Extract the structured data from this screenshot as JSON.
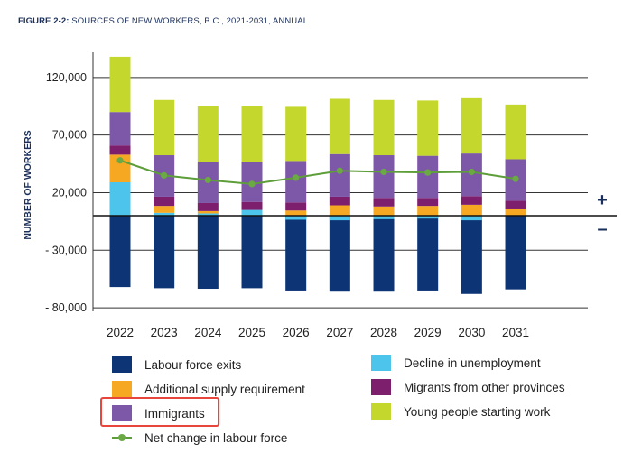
{
  "figure": {
    "label": "FIGURE 2-2:",
    "title": "SOURCES OF NEW WORKERS, B.C., 2021-2031, ANNUAL"
  },
  "chart_data": {
    "type": "bar",
    "stacked": true,
    "title": "SOURCES OF NEW WORKERS, B.C., 2021-2031, ANNUAL",
    "ylabel": "NUMBER OF WORKERS",
    "xlabel": "",
    "ylim": [
      -86000,
      145000
    ],
    "ytick_values": [
      120000,
      70000,
      20000,
      -30000,
      -80000
    ],
    "ytick_labels": [
      "120,000",
      "70,000",
      "20,000",
      "- 30,000",
      "- 80,000"
    ],
    "categories": [
      "2022",
      "2023",
      "2024",
      "2025",
      "2026",
      "2027",
      "2028",
      "2029",
      "2030",
      "2031"
    ],
    "series": [
      {
        "name": "Labour force exits",
        "color": "#0d3575",
        "values": [
          -62000,
          -63000,
          -63500,
          -63000,
          -65000,
          -66000,
          -66000,
          -65000,
          -68000,
          -64000
        ]
      },
      {
        "name": "Decline in unemployment",
        "color": "#4cc4ec",
        "values": [
          29000,
          2500,
          2000,
          5000,
          0,
          0,
          0,
          0,
          0,
          0
        ]
      },
      {
        "name": "Additional supply requirement",
        "color": "#f6a823",
        "values": [
          24000,
          6000,
          2000,
          0,
          4500,
          9000,
          8000,
          8500,
          9500,
          5500
        ]
      },
      {
        "name": "Migrants from other provinces",
        "color": "#7e1f6e",
        "values": [
          8000,
          8000,
          7000,
          7000,
          7000,
          7500,
          7500,
          7000,
          7500,
          7500
        ]
      },
      {
        "name": "Immigrants",
        "color": "#7d57a8",
        "values": [
          29000,
          36000,
          36000,
          35000,
          36000,
          37000,
          37000,
          36500,
          37000,
          36000
        ]
      },
      {
        "name": "Young people starting work",
        "color": "#c4d72d",
        "values": [
          48000,
          48000,
          48000,
          48000,
          47000,
          48000,
          48000,
          48000,
          48000,
          47500
        ]
      }
    ],
    "unemployment_increase": [
      0,
      0,
      0,
      0,
      3500,
      4000,
      3000,
      2500,
      4000,
      0
    ],
    "line_series": {
      "name": "Net change in labour force",
      "color": "#5e9e3a",
      "values": [
        48000,
        35000,
        31000,
        27500,
        33000,
        39000,
        38000,
        37500,
        38000,
        32000
      ]
    },
    "sign_labels": {
      "positive": "+",
      "negative": "–"
    },
    "legend": {
      "left": [
        "Labour force exits",
        "Additional supply requirement",
        "Immigrants",
        "Net change in labour force"
      ],
      "right": [
        "Decline in unemployment",
        "Migrants from other provinces",
        "Young people starting work"
      ]
    },
    "highlighted_legend_entry": "Immigrants"
  }
}
